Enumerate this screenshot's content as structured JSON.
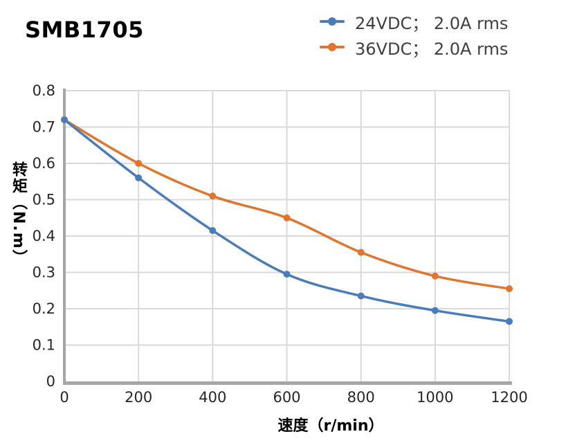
{
  "title": "SMB1705",
  "legend": {
    "items": [
      {
        "label": "24VDC； 2.0A rms",
        "color": "#4A7CBB"
      },
      {
        "label": "36VDC； 2.0A rms",
        "color": "#E2752E"
      }
    ]
  },
  "chart_data": {
    "type": "line",
    "title": "SMB1705",
    "x": [
      0,
      200,
      400,
      600,
      800,
      1000,
      1200
    ],
    "series": [
      {
        "name": "24VDC； 2.0A rms",
        "color": "#4A7CBB",
        "values": [
          0.72,
          0.56,
          0.415,
          0.295,
          0.235,
          0.195,
          0.165
        ]
      },
      {
        "name": "36VDC； 2.0A rms",
        "color": "#E2752E",
        "values": [
          0.72,
          0.6,
          0.51,
          0.45,
          0.355,
          0.29,
          0.255
        ]
      }
    ],
    "xlabel": "速度（r/min）",
    "ylabel": "转矩（N.m）",
    "xlim": [
      0,
      1200
    ],
    "ylim": [
      0,
      0.8
    ],
    "xticks": [
      0,
      200,
      400,
      600,
      800,
      1000,
      1200
    ],
    "yticks": [
      0,
      0.1,
      0.2,
      0.3,
      0.4,
      0.5,
      0.6,
      0.7,
      0.8
    ],
    "grid": true,
    "smooth": true,
    "legend_position": "top-right"
  },
  "style": {
    "grid_color": "#D9D9D9",
    "axis_color": "#A6A6A6",
    "tick_color": "#262626",
    "legend_text_color": "#404040",
    "background": "#FFFFFF"
  }
}
